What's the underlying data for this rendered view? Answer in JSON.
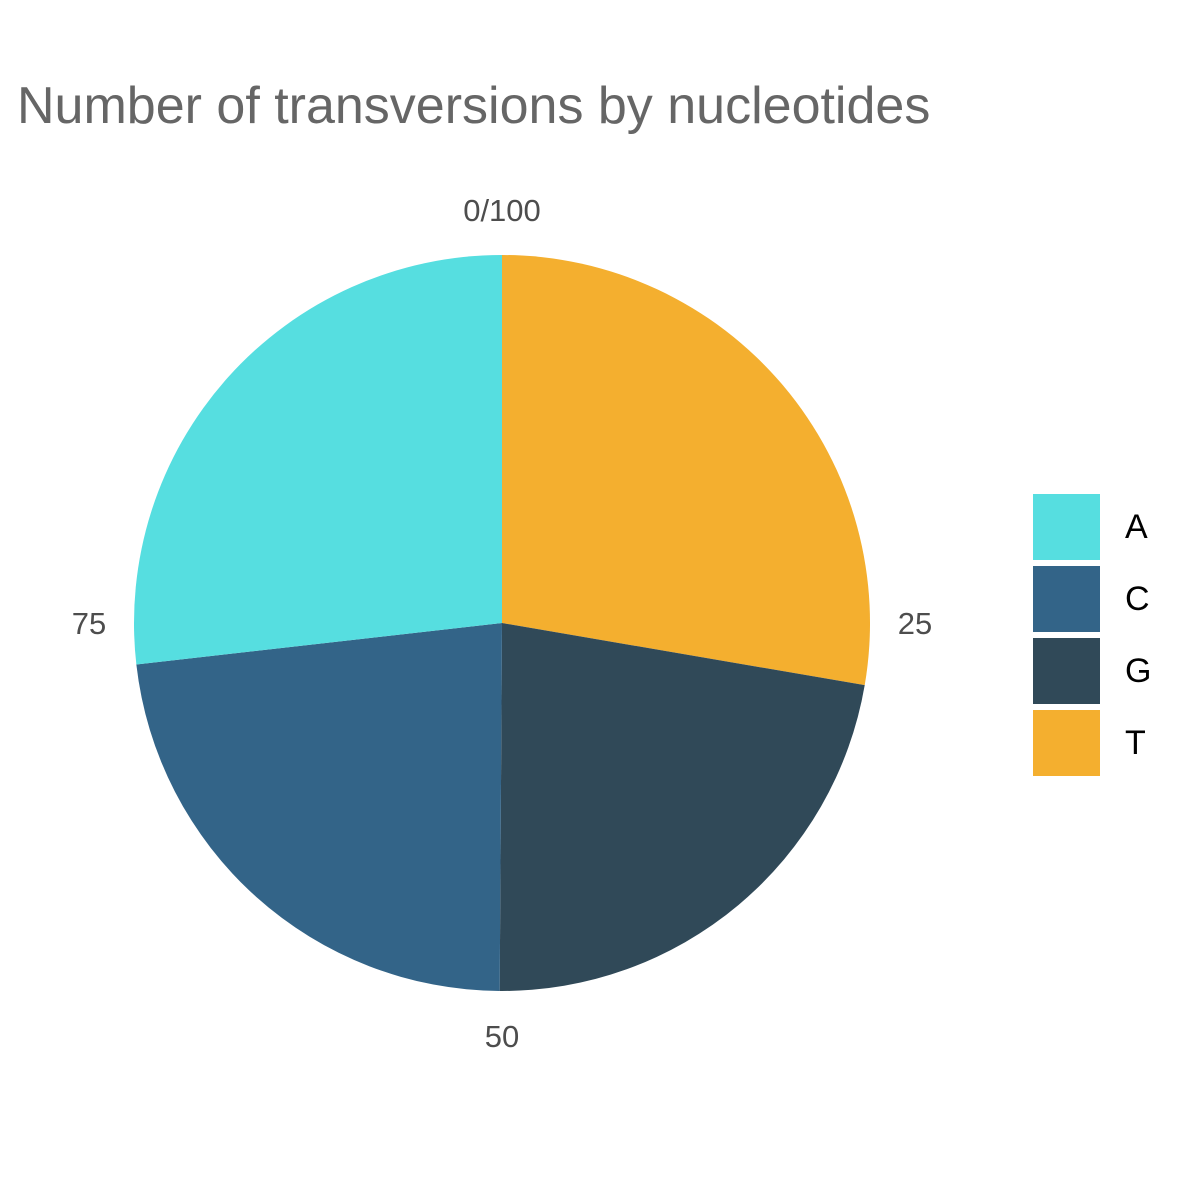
{
  "chart_data": {
    "type": "pie",
    "title": "Number of transversions by nucleotides",
    "categories": [
      "A",
      "C",
      "G",
      "T"
    ],
    "values": [
      26.8,
      23.1,
      22.4,
      27.7
    ],
    "colors": [
      "#56DEE0",
      "#336488",
      "#304958",
      "#F4AF2F"
    ],
    "order_clockwise_from_top": [
      "T",
      "G",
      "C",
      "A"
    ],
    "tick_labels": [
      "0/100",
      "25",
      "50",
      "75"
    ],
    "tick_values": [
      0,
      25,
      50,
      75
    ],
    "legend_position": "right"
  }
}
